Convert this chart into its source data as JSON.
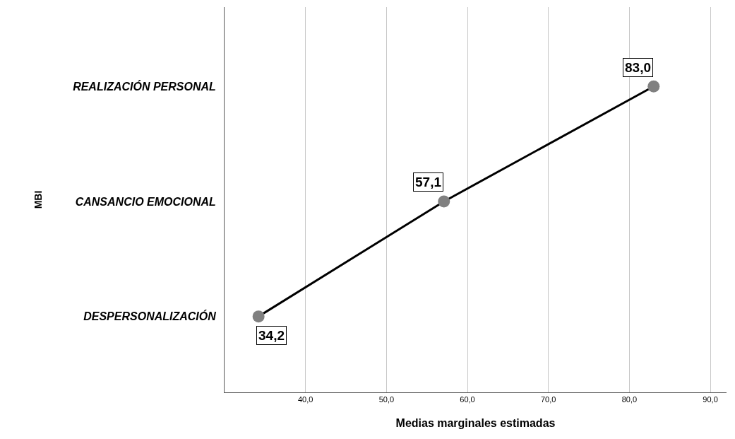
{
  "chart_data": {
    "type": "line",
    "orientation": "horizontal",
    "xlabel": "Medias marginales estimadas",
    "ylabel": "MBI",
    "categories": [
      "REALIZACIÓN PERSONAL",
      "CANSANCIO EMOCIONAL",
      "DESPERSONALIZACIÓN"
    ],
    "series": [
      {
        "color": "#000000",
        "colors": [
          "#808080",
          "#808080",
          "#808080"
        ],
        "values": [
          83.0,
          57.1,
          34.2
        ],
        "value_labels": [
          "83,0",
          "57,1",
          "34,2"
        ]
      }
    ],
    "xlim": [
      30,
      92
    ],
    "xticks": [
      {
        "value": 40,
        "label": "40,0"
      },
      {
        "value": 50,
        "label": "50,0"
      },
      {
        "value": 60,
        "label": "60,0"
      },
      {
        "value": 70,
        "label": "70,0"
      },
      {
        "value": 80,
        "label": "80,0"
      },
      {
        "value": 90,
        "label": "90,0"
      }
    ],
    "grid": "x",
    "marker": "circle",
    "line_style": "solid"
  }
}
